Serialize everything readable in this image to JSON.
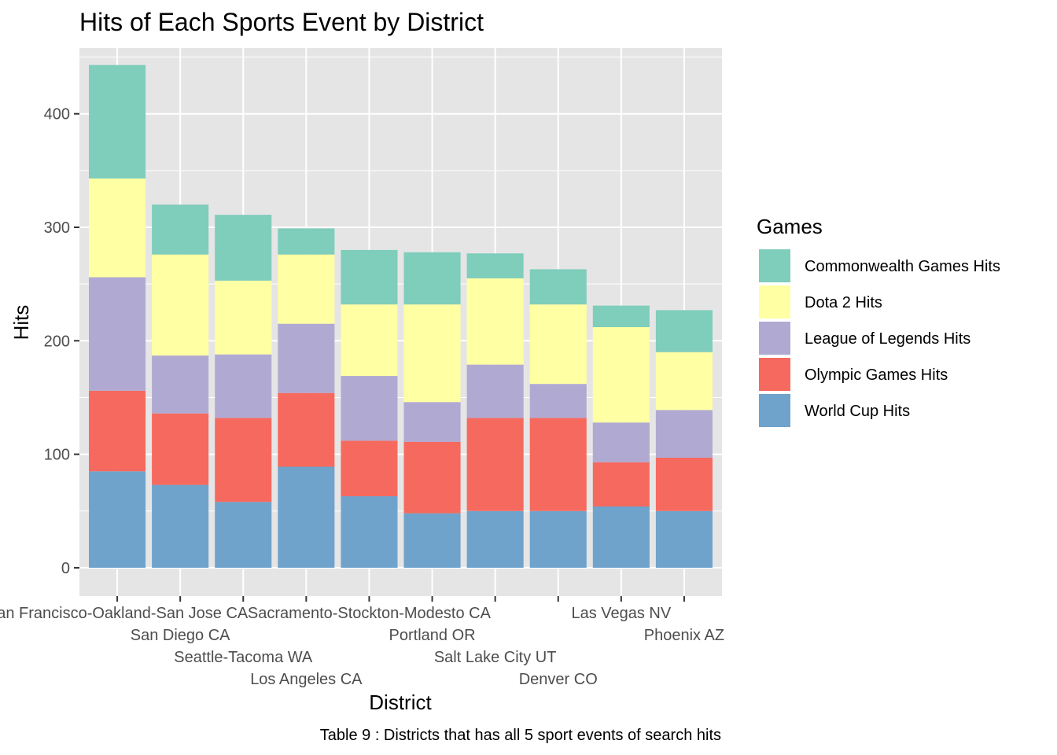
{
  "chart_data": {
    "type": "bar",
    "stacked": true,
    "title": "Hits of Each Sports Event by District",
    "xlabel": "District",
    "ylabel": "Hits",
    "ylim": [
      -25,
      458
    ],
    "yticks": [
      0,
      100,
      200,
      300,
      400
    ],
    "grid": true,
    "legend_position": "right",
    "legend_title": "Games",
    "caption": "Table 9 : Districts that has all 5 sport events of search hits",
    "categories": [
      "San Francisco-Oakland-San Jose CA",
      "San Diego CA",
      "Seattle-Tacoma WA",
      "Los Angeles CA",
      "Sacramento-Stockton-Modesto CA",
      "Portland OR",
      "Salt Lake City UT",
      "Denver CO",
      "Las Vegas NV",
      "Phoenix AZ"
    ],
    "series": [
      {
        "name": "World Cup Hits",
        "color": "#6fa3cc",
        "values": [
          85,
          73,
          58,
          89,
          63,
          48,
          50,
          50,
          54,
          50
        ]
      },
      {
        "name": "Olympic Games Hits",
        "color": "#f6695e",
        "values": [
          71,
          63,
          74,
          65,
          49,
          63,
          82,
          82,
          39,
          47
        ]
      },
      {
        "name": "League of Legends Hits",
        "color": "#b0aad3",
        "values": [
          100,
          51,
          56,
          61,
          57,
          35,
          47,
          30,
          35,
          42
        ]
      },
      {
        "name": "Dota 2 Hits",
        "color": "#ffffa3",
        "values": [
          87,
          89,
          65,
          61,
          63,
          86,
          76,
          70,
          84,
          51
        ]
      },
      {
        "name": "Commonwealth Games Hits",
        "color": "#7fcdbb",
        "values": [
          100,
          44,
          58,
          23,
          48,
          46,
          22,
          31,
          19,
          37
        ]
      }
    ],
    "legend_order": [
      "Commonwealth Games Hits",
      "Dota 2 Hits",
      "League of Legends Hits",
      "Olympic Games Hits",
      "World Cup Hits"
    ],
    "colors": {
      "panel_background": "#e5e5e5",
      "grid": "#ffffff",
      "tick_label": "#4d4d4d"
    }
  }
}
